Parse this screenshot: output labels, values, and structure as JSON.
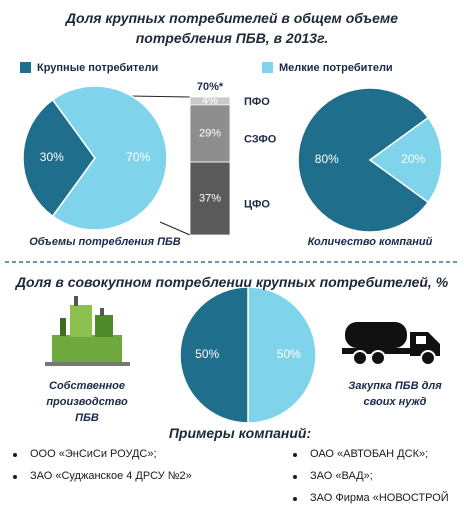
{
  "title": "Доля крупных потребителей в общем объеме потребления ПБВ, в 2013г.",
  "section_title": "Доля в совокупном потреблении крупных потребителей, %",
  "examples": {
    "title": "Примеры компаний:",
    "left": [
      "ООО «ЭнСиСи РОУДС»;",
      "ЗАО «Суджанское 4 ДРСУ №2»"
    ],
    "right": [
      "ОАО «АВТОБАН ДСК»;",
      "ЗАО «ВАД»;",
      "ЗАО Фирма «НОВОСТРОЙ"
    ]
  },
  "chart_data": [
    {
      "type": "pie",
      "title": "Объемы потребления ПБВ",
      "categories": [
        "Крупные потребители",
        "Мелкие потребители"
      ],
      "values": [
        30,
        70
      ],
      "value_labels": [
        "30%",
        "70%"
      ],
      "colors": [
        "#1f6e8c",
        "#7fd3ea"
      ]
    },
    {
      "type": "bar",
      "stacked": true,
      "total_label": "70%*",
      "categories": [
        "ПФО",
        "СЗФО",
        "ЦФО"
      ],
      "values": [
        4,
        29,
        37
      ],
      "value_labels": [
        "4%",
        "29%",
        "37%"
      ],
      "colors": [
        "#c9c9c9",
        "#8e8e8e",
        "#5a5a5a"
      ]
    },
    {
      "type": "pie",
      "title": "Количество компаний",
      "values": [
        80,
        20
      ],
      "value_labels": [
        "80%",
        "20%"
      ],
      "colors": [
        "#1f6e8c",
        "#7fd3ea"
      ]
    },
    {
      "type": "pie",
      "categories": [
        "Собственное производство ПБВ",
        "Закупка ПБВ для своих нужд"
      ],
      "values": [
        50,
        50
      ],
      "value_labels": [
        "50%",
        "50%"
      ],
      "colors": [
        "#7fd3ea",
        "#1f6e8c"
      ]
    }
  ]
}
